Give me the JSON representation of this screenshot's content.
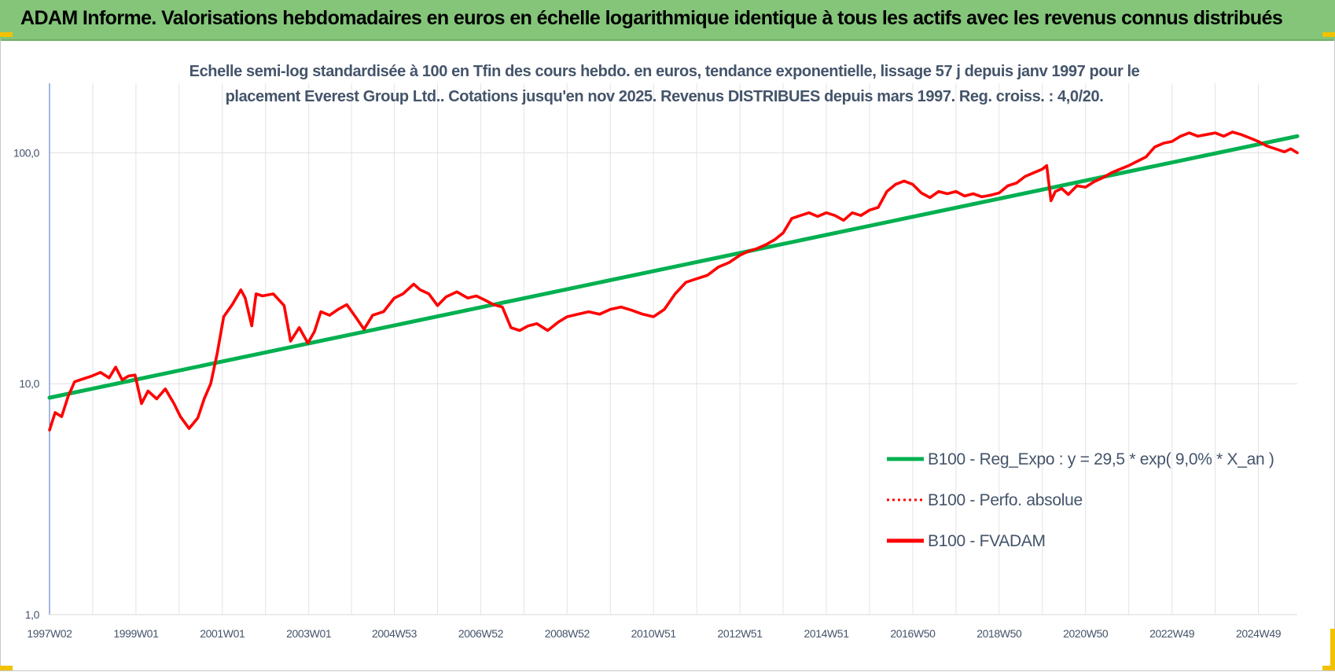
{
  "header": {
    "title": "ADAM Informe. Valorisations hebdomadaires en euros en échelle logarithmique identique à tous les actifs avec les revenus connus distribués",
    "background": "#84c57a"
  },
  "chart_data": {
    "type": "line",
    "title_lines": [
      "Echelle semi-log standardisée à 100 en Tfin des cours hebdo. en euros, tendance exponentielle, lissage 57 j depuis janv 1997 pour le",
      "placement Everest Group Ltd.. Cotations jusqu'en nov 2025. Revenus DISTRIBUES depuis mars 1997. Reg. croiss. : 4,0/20."
    ],
    "y_scale": "log",
    "ylim": [
      1,
      200
    ],
    "y_ticks": [
      {
        "value": 1,
        "label": "1,0"
      },
      {
        "value": 10,
        "label": "10,0"
      },
      {
        "value": 100,
        "label": "100,0"
      }
    ],
    "xlim": [
      1997.02,
      2025.9
    ],
    "x_ticks": [
      {
        "value": 1997.02,
        "label": "1997W02"
      },
      {
        "value": 1999.02,
        "label": "1999W01"
      },
      {
        "value": 2001.02,
        "label": "2001W01"
      },
      {
        "value": 2003.02,
        "label": "2003W01"
      },
      {
        "value": 2005.0,
        "label": "2004W53"
      },
      {
        "value": 2007.0,
        "label": "2006W52"
      },
      {
        "value": 2009.0,
        "label": "2008W52"
      },
      {
        "value": 2011.0,
        "label": "2010W51"
      },
      {
        "value": 2013.0,
        "label": "2012W51"
      },
      {
        "value": 2015.0,
        "label": "2014W51"
      },
      {
        "value": 2017.0,
        "label": "2016W50"
      },
      {
        "value": 2019.0,
        "label": "2018W50"
      },
      {
        "value": 2021.0,
        "label": "2020W50"
      },
      {
        "value": 2023.0,
        "label": "2022W49"
      },
      {
        "value": 2025.0,
        "label": "2024W49"
      }
    ],
    "x_grid": true,
    "y_grid": true,
    "legend_position": "right-center",
    "series": [
      {
        "name": "B100 - Reg_Expo : y = 29,5 * exp( 9,0% *  X_an )",
        "color": "#00b050",
        "style": "solid",
        "x": [
          1997.02,
          2025.9
        ],
        "values": [
          8.7,
          118
        ]
      },
      {
        "name": "B100 - Perfo. absolue",
        "color": "#ff0000",
        "style": "dotted",
        "x": [],
        "values": []
      },
      {
        "name": "B100 - FVADAM",
        "color": "#ff0000",
        "style": "solid",
        "x": [
          1997.02,
          1997.15,
          1997.3,
          1997.45,
          1997.6,
          1997.8,
          1998.0,
          1998.2,
          1998.4,
          1998.55,
          1998.7,
          1998.85,
          1999.0,
          1999.15,
          1999.3,
          1999.5,
          1999.7,
          1999.9,
          2000.05,
          2000.25,
          2000.45,
          2000.6,
          2000.75,
          2000.9,
          2001.05,
          2001.25,
          2001.45,
          2001.55,
          2001.7,
          2001.8,
          2001.95,
          2002.2,
          2002.45,
          2002.6,
          2002.8,
          2003.0,
          2003.15,
          2003.3,
          2003.5,
          2003.7,
          2003.9,
          2004.1,
          2004.3,
          2004.5,
          2004.75,
          2005.0,
          2005.2,
          2005.45,
          2005.6,
          2005.8,
          2006.0,
          2006.2,
          2006.45,
          2006.7,
          2006.9,
          2007.1,
          2007.3,
          2007.5,
          2007.7,
          2007.9,
          2008.1,
          2008.3,
          2008.55,
          2008.8,
          2009.0,
          2009.25,
          2009.5,
          2009.75,
          2010.0,
          2010.25,
          2010.5,
          2010.75,
          2011.0,
          2011.25,
          2011.5,
          2011.75,
          2012.0,
          2012.25,
          2012.5,
          2012.75,
          2013.0,
          2013.2,
          2013.4,
          2013.6,
          2013.8,
          2014.0,
          2014.2,
          2014.4,
          2014.6,
          2014.8,
          2015.0,
          2015.2,
          2015.4,
          2015.6,
          2015.8,
          2016.0,
          2016.2,
          2016.4,
          2016.6,
          2016.8,
          2017.0,
          2017.2,
          2017.4,
          2017.6,
          2017.8,
          2018.0,
          2018.2,
          2018.4,
          2018.6,
          2018.8,
          2019.0,
          2019.2,
          2019.4,
          2019.6,
          2019.8,
          2020.0,
          2020.1,
          2020.2,
          2020.3,
          2020.45,
          2020.6,
          2020.8,
          2021.0,
          2021.2,
          2021.4,
          2021.6,
          2021.8,
          2022.0,
          2022.2,
          2022.4,
          2022.6,
          2022.8,
          2023.0,
          2023.2,
          2023.4,
          2023.6,
          2023.8,
          2024.0,
          2024.2,
          2024.4,
          2024.6,
          2024.8,
          2025.0,
          2025.2,
          2025.4,
          2025.6,
          2025.75,
          2025.9
        ],
        "values": [
          6.3,
          7.5,
          7.2,
          8.8,
          10.2,
          10.5,
          10.8,
          11.2,
          10.6,
          11.8,
          10.4,
          10.8,
          10.9,
          8.2,
          9.3,
          8.6,
          9.5,
          8.2,
          7.2,
          6.4,
          7.1,
          8.6,
          10.0,
          13.5,
          19.5,
          22.0,
          25.5,
          23.5,
          17.8,
          24.5,
          24.0,
          24.5,
          21.8,
          15.3,
          17.5,
          15.0,
          16.8,
          20.5,
          19.8,
          21.0,
          22.0,
          19.5,
          17.2,
          19.8,
          20.5,
          23.5,
          24.5,
          27.0,
          25.5,
          24.5,
          21.8,
          23.8,
          25.0,
          23.5,
          24.0,
          23.0,
          22.0,
          21.5,
          17.5,
          17.0,
          17.8,
          18.2,
          17.0,
          18.5,
          19.5,
          20.0,
          20.5,
          20.0,
          21.0,
          21.5,
          20.8,
          20.0,
          19.5,
          21.0,
          24.5,
          27.5,
          28.5,
          29.5,
          32.0,
          33.5,
          36.0,
          37.5,
          38.5,
          40.0,
          42.0,
          45.0,
          52.0,
          53.5,
          55.0,
          53.0,
          55.0,
          53.5,
          51.0,
          55.0,
          53.5,
          56.5,
          58.0,
          68.0,
          73.0,
          75.5,
          73.0,
          67.0,
          64.0,
          68.0,
          66.5,
          68.0,
          65.0,
          66.5,
          64.5,
          65.5,
          67.0,
          72.0,
          74.0,
          79.0,
          82.0,
          85.0,
          88.0,
          62.0,
          68.0,
          70.0,
          66.0,
          72.0,
          71.0,
          75.0,
          78.0,
          82.0,
          85.0,
          88.0,
          92.0,
          96.0,
          106.0,
          110.0,
          112.0,
          118.0,
          122.0,
          118.0,
          120.0,
          122.0,
          118.0,
          123.0,
          120.0,
          116.0,
          112.0,
          107.0,
          104.0,
          101.0,
          104.0,
          100.0
        ]
      }
    ]
  }
}
